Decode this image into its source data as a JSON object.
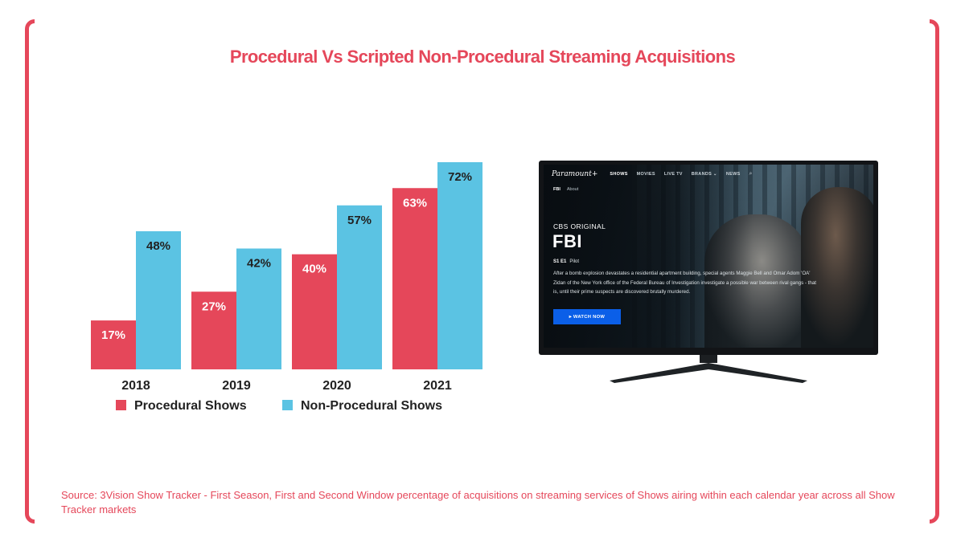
{
  "title": "Procedural Vs Scripted Non-Procedural Streaming Acquisitions",
  "source": "Source: 3Vision Show Tracker - First Season, First and Second Window percentage of acquisitions on streaming services of Shows airing within each calendar year across all Show Tracker markets",
  "colors": {
    "accent": "#e5475a",
    "procedural": "#e5475a",
    "non_procedural": "#5bc3e3",
    "label": "#222222"
  },
  "chart_data": {
    "type": "bar",
    "categories": [
      "2018",
      "2019",
      "2020",
      "2021"
    ],
    "series": [
      {
        "name": "Procedural Shows",
        "values": [
          17,
          27,
          40,
          63
        ],
        "labels": [
          "17%",
          "27%",
          "40%",
          "63%"
        ],
        "color": "#e5475a"
      },
      {
        "name": "Non-Procedural Shows",
        "values": [
          48,
          42,
          57,
          72
        ],
        "labels": [
          "48%",
          "42%",
          "57%",
          "72%"
        ],
        "color": "#5bc3e3"
      }
    ],
    "ylim": [
      0,
      72
    ],
    "grid": false,
    "legend_position": "bottom-left"
  },
  "tv": {
    "nav": {
      "logo": "Paramount+",
      "items": [
        "SHOWS",
        "MOVIES",
        "LIVE TV",
        "BRANDS ⌄",
        "NEWS"
      ],
      "search_icon": "search-icon"
    },
    "subnav": [
      "FBI",
      "About"
    ],
    "network": "CBS ORIGINAL",
    "show_title": "FBI",
    "episode_code": "S1 E1",
    "episode_name": "Pilot",
    "description": "After a bomb explosion devastates a residential apartment building, special agents Maggie Bell and Omar Adom 'OA' Zidan of the New York office of the Federal Bureau of Investigation investigate a possible war between rival gangs - that is, until their prime suspects are discovered brutally murdered.",
    "watch_button": "▸ WATCH NOW"
  }
}
